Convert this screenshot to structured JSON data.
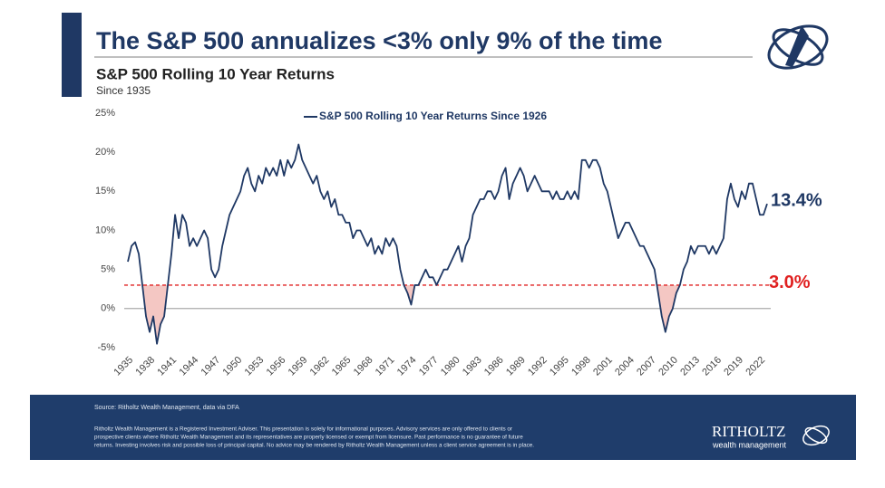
{
  "chart_data": {
    "type": "line",
    "title": "The S&P 500 annualizes <3% only 9% of the time",
    "subtitle": "S&P 500 Rolling 10 Year Returns",
    "note": "Since 1935",
    "x": [
      1935,
      1935.5,
      1936,
      1936.5,
      1937,
      1937.5,
      1938,
      1938.5,
      1939,
      1939.5,
      1940,
      1940.5,
      1941,
      1941.5,
      1942,
      1942.5,
      1943,
      1943.5,
      1944,
      1944.5,
      1945,
      1945.5,
      1946,
      1946.5,
      1947,
      1947.5,
      1948,
      1948.5,
      1949,
      1949.5,
      1950,
      1950.5,
      1951,
      1951.5,
      1952,
      1952.5,
      1953,
      1953.5,
      1954,
      1954.5,
      1955,
      1955.5,
      1956,
      1956.5,
      1957,
      1957.5,
      1958,
      1958.5,
      1959,
      1959.5,
      1960,
      1960.5,
      1961,
      1961.5,
      1962,
      1962.5,
      1963,
      1963.5,
      1964,
      1964.5,
      1965,
      1965.5,
      1966,
      1966.5,
      1967,
      1967.5,
      1968,
      1968.5,
      1969,
      1969.5,
      1970,
      1970.5,
      1971,
      1971.5,
      1972,
      1972.5,
      1973,
      1973.5,
      1974,
      1974.5,
      1975,
      1975.5,
      1976,
      1976.5,
      1977,
      1977.5,
      1978,
      1978.5,
      1979,
      1979.5,
      1980,
      1980.5,
      1981,
      1981.5,
      1982,
      1982.5,
      1983,
      1983.5,
      1984,
      1984.5,
      1985,
      1985.5,
      1986,
      1986.5,
      1987,
      1987.5,
      1988,
      1988.5,
      1989,
      1989.5,
      1990,
      1990.5,
      1991,
      1991.5,
      1992,
      1992.5,
      1993,
      1993.5,
      1994,
      1994.5,
      1995,
      1995.5,
      1996,
      1996.5,
      1997,
      1997.5,
      1998,
      1998.5,
      1999,
      1999.5,
      2000,
      2000.5,
      2001,
      2001.5,
      2002,
      2002.5,
      2003,
      2003.5,
      2004,
      2004.5,
      2005,
      2005.5,
      2006,
      2006.5,
      2007,
      2007.5,
      2008,
      2008.5,
      2009,
      2009.5,
      2010,
      2010.5,
      2011,
      2011.5,
      2012,
      2012.5,
      2013,
      2013.5,
      2014,
      2014.5,
      2015,
      2015.5,
      2016,
      2016.5,
      2017,
      2017.5,
      2018,
      2018.5,
      2019,
      2019.5,
      2020,
      2020.5,
      2021,
      2021.5,
      2022,
      2022.5,
      2023
    ],
    "series": [
      {
        "name": "S&P 500 Rolling 10 Year Returns Since 1926",
        "color": "#1f3864",
        "values": [
          6,
          8,
          8.5,
          7,
          3,
          -1,
          -3,
          -1,
          -4.5,
          -2,
          -1,
          3,
          7,
          12,
          9,
          12,
          11,
          8,
          9,
          8,
          9,
          10,
          9,
          5,
          4,
          5,
          8,
          10,
          12,
          13,
          14,
          15,
          17,
          18,
          16,
          15,
          17,
          16,
          18,
          17,
          18,
          17,
          19,
          17,
          19,
          18,
          19,
          21,
          19,
          18,
          17,
          16,
          17,
          15,
          14,
          15,
          13,
          14,
          12,
          12,
          11,
          11,
          9,
          10,
          10,
          9,
          8,
          9,
          7,
          8,
          7,
          9,
          8,
          9,
          8,
          5,
          3,
          2,
          0.5,
          3,
          3,
          4,
          5,
          4,
          4,
          3,
          4,
          5,
          5,
          6,
          7,
          8,
          6,
          8,
          9,
          12,
          13,
          14,
          14,
          15,
          15,
          14,
          15,
          17,
          18,
          14,
          16,
          17,
          18,
          17,
          15,
          16,
          17,
          16,
          15,
          15,
          15,
          14,
          15,
          14,
          14,
          15,
          14,
          15,
          14,
          19,
          19,
          18,
          19,
          19,
          18,
          16,
          15,
          13,
          11,
          9,
          10,
          11,
          11,
          10,
          9,
          8,
          8,
          7,
          6,
          5,
          2,
          -1,
          -3,
          -1,
          0,
          2,
          3,
          5,
          6,
          8,
          7,
          8,
          8,
          8,
          7,
          8,
          7,
          8,
          9,
          14,
          16,
          14,
          13,
          15,
          14,
          16,
          16,
          14,
          12,
          12,
          13.4
        ]
      }
    ],
    "end_label": {
      "value": 13.4,
      "label": "13.4%"
    },
    "threshold": {
      "value": 3,
      "label": "3.0%",
      "color": "#e02020",
      "shade": "#f4c7c3"
    },
    "xlim": [
      1934.5,
      2024.5
    ],
    "xticks": [
      1935,
      1938,
      1941,
      1944,
      1947,
      1950,
      1953,
      1956,
      1959,
      1962,
      1965,
      1968,
      1971,
      1974,
      1977,
      1980,
      1983,
      1986,
      1989,
      1992,
      1995,
      1998,
      2001,
      2004,
      2007,
      2010,
      2013,
      2016,
      2019,
      2022
    ],
    "ylim": [
      -5,
      25
    ],
    "yticks": [
      {
        "value": -5,
        "label": "-5%"
      },
      {
        "value": 0,
        "label": "0%"
      },
      {
        "value": 5,
        "label": "5%"
      },
      {
        "value": 10,
        "label": "10%"
      },
      {
        "value": 15,
        "label": "15%"
      },
      {
        "value": 20,
        "label": "20%"
      },
      {
        "value": 25,
        "label": "25%"
      }
    ],
    "grid": false
  },
  "footer": {
    "source": "Source: Ritholtz Wealth Management, data via DFA",
    "disclaimer": [
      "Ritholtz Wealth Management is a Registered Investment Adviser. This presentation is solely for informational purposes. Advisory services are only offered to clients or",
      "prospective clients where Ritholtz Wealth Management and its representatives are properly licensed or exempt from licensure. Past performance is no guarantee of future",
      "returns. Investing involves risk and possible loss of principal capital. No advice may be rendered by Ritholtz Wealth Management unless a client service agreement is in place."
    ],
    "brand": "RITHOLTZ",
    "brand_sub": "wealth management"
  }
}
